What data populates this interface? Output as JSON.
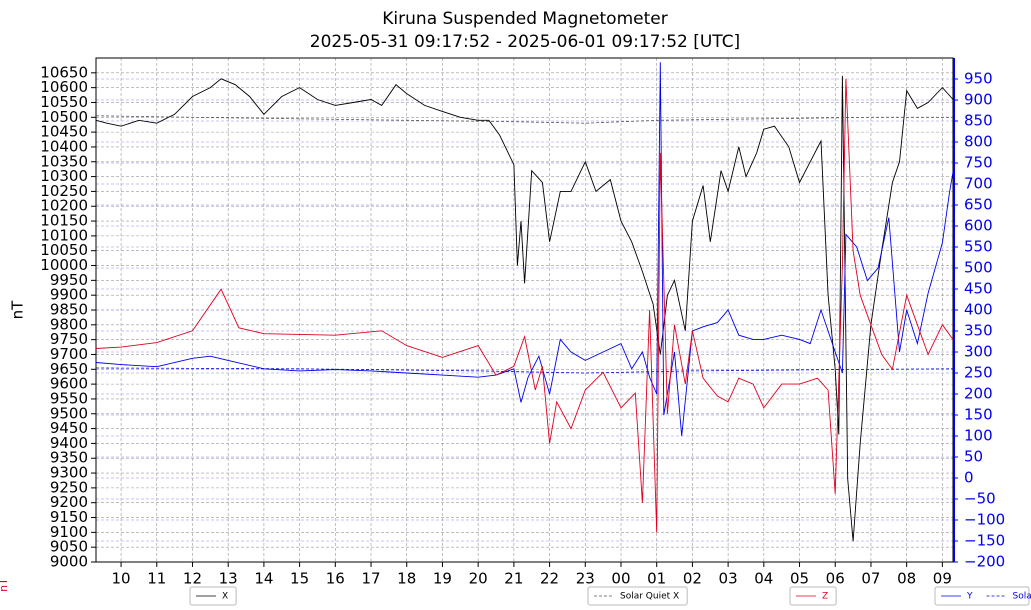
{
  "chart_data": {
    "type": "line",
    "title": "Kiruna Suspended Magnetometer",
    "subtitle": "2025-05-31 09:17:52 - 2025-06-01 09:17:52 [UTC]",
    "y_axis_label": "nT",
    "z_axis_label": "nT",
    "xlim": [
      9.298,
      33.298
    ],
    "xticks": [
      10,
      11,
      12,
      13,
      14,
      15,
      16,
      17,
      18,
      19,
      20,
      21,
      22,
      23,
      {
        "value": 24,
        "label": "00"
      },
      {
        "value": 25,
        "label": "01"
      },
      {
        "value": 26,
        "label": "02"
      },
      {
        "value": 27,
        "label": "03"
      },
      {
        "value": 28,
        "label": "04"
      },
      {
        "value": 29,
        "label": "05"
      },
      {
        "value": 30,
        "label": "06"
      },
      {
        "value": 31,
        "label": "07"
      },
      {
        "value": 32,
        "label": "08"
      },
      {
        "value": 33,
        "label": "09"
      }
    ],
    "ylim": [
      9000,
      10700
    ],
    "yticks": [
      9000,
      9050,
      9100,
      9150,
      9200,
      9250,
      9300,
      9350,
      9400,
      9450,
      9500,
      9550,
      9600,
      9650,
      9700,
      9750,
      9800,
      9850,
      9900,
      9950,
      10000,
      10050,
      10100,
      10150,
      10200,
      10250,
      10300,
      10350,
      10400,
      10450,
      10500,
      10550,
      10600,
      10650
    ],
    "y2lim": [
      -200,
      1000
    ],
    "y2ticks": [
      {
        "value": -200,
        "label": "−200"
      },
      {
        "value": -150,
        "label": "−150"
      },
      {
        "value": -100,
        "label": "−100"
      },
      {
        "value": -50,
        "label": "−50"
      },
      0,
      50,
      100,
      150,
      200,
      250,
      300,
      350,
      400,
      450,
      500,
      550,
      600,
      650,
      700,
      750,
      800,
      850,
      900,
      950
    ],
    "grid": true,
    "series": [
      {
        "name": "X",
        "color": "#000000",
        "dash": false,
        "axis": "y",
        "x": [
          9.3,
          9.6,
          10,
          10.5,
          11,
          11.5,
          12,
          12.5,
          12.8,
          13.2,
          13.6,
          14,
          14.5,
          15,
          15.5,
          16,
          16.5,
          17,
          17.3,
          17.7,
          18,
          18.5,
          19,
          19.5,
          20,
          20.3,
          20.6,
          21,
          21.1,
          21.2,
          21.3,
          21.5,
          21.8,
          22,
          22.3,
          22.6,
          23,
          23.3,
          23.7,
          24,
          24.3,
          24.6,
          24.9,
          25.1,
          25.3,
          25.5,
          25.8,
          26,
          26.3,
          26.5,
          26.8,
          27,
          27.3,
          27.5,
          27.8,
          28,
          28.3,
          28.7,
          29,
          29.3,
          29.6,
          29.8,
          30,
          30.1,
          30.2,
          30.35,
          30.5,
          30.7,
          31,
          31.3,
          31.6,
          31.8,
          32,
          32.3,
          32.6,
          33,
          33.3
        ],
        "values": [
          10490,
          10480,
          10470,
          10490,
          10480,
          10510,
          10570,
          10600,
          10630,
          10610,
          10570,
          10510,
          10570,
          10600,
          10560,
          10540,
          10550,
          10560,
          10540,
          10610,
          10580,
          10540,
          10520,
          10500,
          10490,
          10490,
          10440,
          10340,
          10000,
          10150,
          9940,
          10320,
          10280,
          10080,
          10250,
          10250,
          10350,
          10250,
          10290,
          10150,
          10080,
          9980,
          9870,
          9700,
          9900,
          9950,
          9780,
          10150,
          10270,
          10080,
          10320,
          10250,
          10400,
          10300,
          10380,
          10460,
          10470,
          10400,
          10280,
          10350,
          10420,
          9900,
          9650,
          9430,
          10640,
          9280,
          9070,
          9400,
          9800,
          10050,
          10280,
          10350,
          10590,
          10530,
          10550,
          10600,
          10560
        ]
      },
      {
        "name": "Solar Quiet X",
        "color": "#555555",
        "dash": true,
        "axis": "y",
        "x": [
          9.3,
          12,
          15,
          18,
          21,
          23,
          25,
          28,
          31,
          33.3
        ],
        "values": [
          10505,
          10500,
          10495,
          10490,
          10485,
          10480,
          10490,
          10495,
          10500,
          10500
        ]
      },
      {
        "name": "Y",
        "color": "#0000ee",
        "dash": false,
        "axis": "y2",
        "x": [
          9.3,
          10,
          11,
          12,
          12.5,
          13,
          14,
          15,
          16,
          17,
          18,
          19,
          20,
          20.5,
          21,
          21.2,
          21.4,
          21.7,
          22,
          22.3,
          22.6,
          23,
          23.5,
          24,
          24.3,
          24.6,
          24.8,
          25,
          25.1,
          25.2,
          25.5,
          25.7,
          26,
          26.3,
          26.7,
          27,
          27.3,
          27.7,
          28,
          28.5,
          29,
          29.3,
          29.6,
          30,
          30.2,
          30.3,
          30.6,
          30.9,
          31.2,
          31.5,
          31.8,
          32,
          32.3,
          32.6,
          33,
          33.2,
          33.3
        ],
        "values": [
          275,
          270,
          265,
          285,
          290,
          280,
          260,
          255,
          258,
          255,
          250,
          245,
          240,
          245,
          260,
          180,
          240,
          290,
          200,
          330,
          300,
          280,
          300,
          320,
          260,
          300,
          240,
          200,
          990,
          150,
          300,
          100,
          350,
          360,
          370,
          400,
          340,
          330,
          330,
          340,
          330,
          320,
          400,
          300,
          250,
          580,
          550,
          470,
          500,
          620,
          300,
          400,
          320,
          440,
          560,
          680,
          730
        ]
      },
      {
        "name": "Solar Quiet Y",
        "color": "#0000ee",
        "dash": true,
        "axis": "y2",
        "x": [
          9.3,
          15,
          20,
          23,
          26,
          30,
          33.3
        ],
        "values": [
          262,
          260,
          255,
          250,
          255,
          258,
          260
        ]
      },
      {
        "name": "Z",
        "color": "#e00020",
        "dash": false,
        "axis": "y",
        "x": [
          9.3,
          10,
          11,
          12,
          12.8,
          13.3,
          14,
          16,
          17.3,
          18,
          19,
          20,
          20.5,
          21,
          21.3,
          21.6,
          21.8,
          22,
          22.2,
          22.6,
          23,
          23.5,
          24,
          24.4,
          24.6,
          24.8,
          25,
          25.1,
          25.3,
          25.5,
          25.8,
          26,
          26.3,
          26.7,
          27,
          27.3,
          27.7,
          28,
          28.5,
          29,
          29.5,
          29.8,
          30,
          30.2,
          30.3,
          30.5,
          30.7,
          31,
          31.3,
          31.6,
          32,
          32.3,
          32.6,
          33,
          33.3
        ],
        "values": [
          9720,
          9725,
          9740,
          9780,
          9920,
          9790,
          9770,
          9765,
          9780,
          9730,
          9690,
          9730,
          9630,
          9660,
          9760,
          9580,
          9660,
          9400,
          9540,
          9450,
          9580,
          9640,
          9520,
          9570,
          9200,
          9850,
          9100,
          10380,
          9500,
          9800,
          9600,
          9780,
          9620,
          9560,
          9540,
          9620,
          9600,
          9520,
          9600,
          9600,
          9620,
          9580,
          9230,
          10000,
          10630,
          10050,
          9900,
          9800,
          9700,
          9650,
          9900,
          9800,
          9700,
          9800,
          9750
        ]
      }
    ]
  }
}
